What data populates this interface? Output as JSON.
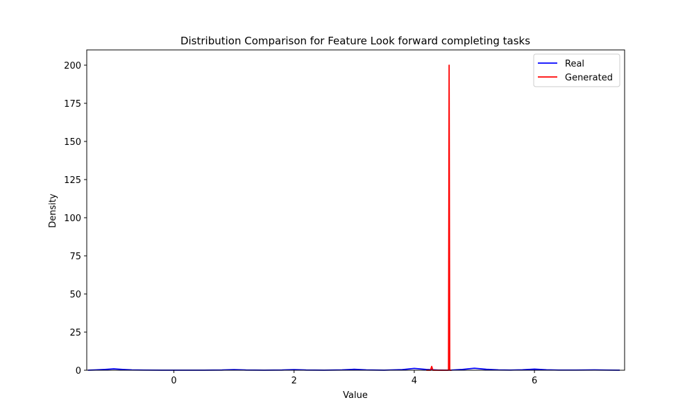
{
  "chart_data": {
    "type": "line",
    "title": "Distribution Comparison for Feature Look forward completing tasks",
    "xlabel": "Value",
    "ylabel": "Density",
    "xlim": [
      -1.45,
      7.5
    ],
    "ylim": [
      0,
      210
    ],
    "xticks": [
      0,
      2,
      4,
      6
    ],
    "yticks": [
      0,
      25,
      50,
      75,
      100,
      125,
      150,
      175,
      200
    ],
    "grid": false,
    "legend_position": "top-right",
    "series": [
      {
        "name": "Real",
        "color": "#0000ff",
        "points": [
          [
            -1.43,
            0.05
          ],
          [
            -1.3,
            0.2
          ],
          [
            -1.15,
            0.5
          ],
          [
            -1.0,
            0.9
          ],
          [
            -0.85,
            0.5
          ],
          [
            -0.7,
            0.2
          ],
          [
            -0.5,
            0.1
          ],
          [
            -0.2,
            0.05
          ],
          [
            0.0,
            0.05
          ],
          [
            0.5,
            0.05
          ],
          [
            0.8,
            0.15
          ],
          [
            1.0,
            0.4
          ],
          [
            1.2,
            0.15
          ],
          [
            1.5,
            0.05
          ],
          [
            1.8,
            0.15
          ],
          [
            2.0,
            0.4
          ],
          [
            2.2,
            0.15
          ],
          [
            2.5,
            0.05
          ],
          [
            2.8,
            0.2
          ],
          [
            3.0,
            0.6
          ],
          [
            3.2,
            0.2
          ],
          [
            3.5,
            0.05
          ],
          [
            3.8,
            0.4
          ],
          [
            4.0,
            1.2
          ],
          [
            4.2,
            0.5
          ],
          [
            4.4,
            0.1
          ],
          [
            4.6,
            0.05
          ],
          [
            4.8,
            0.5
          ],
          [
            5.0,
            1.3
          ],
          [
            5.2,
            0.6
          ],
          [
            5.4,
            0.2
          ],
          [
            5.6,
            0.1
          ],
          [
            5.8,
            0.3
          ],
          [
            6.0,
            0.7
          ],
          [
            6.2,
            0.3
          ],
          [
            6.4,
            0.1
          ],
          [
            6.7,
            0.1
          ],
          [
            7.0,
            0.2
          ],
          [
            7.2,
            0.1
          ],
          [
            7.42,
            0.05
          ]
        ]
      },
      {
        "name": "Generated",
        "color": "#ff0000",
        "points": [
          [
            4.2,
            0.0
          ],
          [
            4.27,
            0.0
          ],
          [
            4.29,
            2.5
          ],
          [
            4.31,
            0.0
          ],
          [
            4.55,
            0.0
          ],
          [
            4.57,
            0.0
          ],
          [
            4.58,
            200.0
          ],
          [
            4.59,
            0.0
          ],
          [
            4.62,
            0.0
          ]
        ]
      }
    ]
  }
}
